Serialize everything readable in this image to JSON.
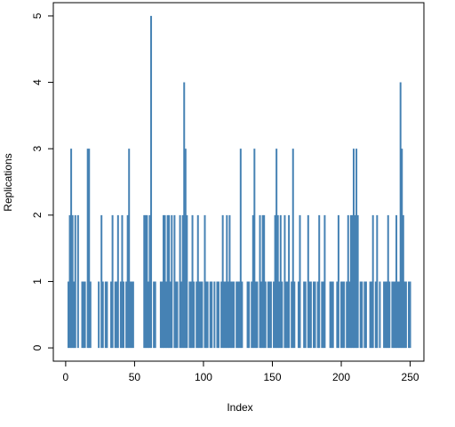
{
  "chart_data": {
    "type": "needle",
    "x_label": "Index",
    "y_label": "Replications",
    "color": "#4682b4",
    "x": [
      1,
      2,
      3,
      4,
      5,
      6,
      7,
      8,
      9,
      10,
      11,
      12,
      13,
      14,
      15,
      16,
      17,
      18,
      19,
      20,
      21,
      22,
      23,
      24,
      25,
      26,
      27,
      28,
      29,
      30,
      31,
      32,
      33,
      34,
      35,
      36,
      37,
      38,
      39,
      40,
      41,
      42,
      43,
      44,
      45,
      46,
      47,
      48,
      49,
      50,
      51,
      52,
      53,
      54,
      55,
      56,
      57,
      58,
      59,
      60,
      61,
      62,
      63,
      64,
      65,
      66,
      67,
      68,
      69,
      70,
      71,
      72,
      73,
      74,
      75,
      76,
      77,
      78,
      79,
      80,
      81,
      82,
      83,
      84,
      85,
      86,
      87,
      88,
      89,
      90,
      91,
      92,
      93,
      94,
      95,
      96,
      97,
      98,
      99,
      100,
      101,
      102,
      103,
      104,
      105,
      106,
      107,
      108,
      109,
      110,
      111,
      112,
      113,
      114,
      115,
      116,
      117,
      118,
      119,
      120,
      121,
      122,
      123,
      124,
      125,
      126,
      127,
      128,
      129,
      130,
      131,
      132,
      133,
      134,
      135,
      136,
      137,
      138,
      139,
      140,
      141,
      142,
      143,
      144,
      145,
      146,
      147,
      148,
      149,
      150,
      151,
      152,
      153,
      154,
      155,
      156,
      157,
      158,
      159,
      160,
      161,
      162,
      163,
      164,
      165,
      166,
      167,
      168,
      169,
      170,
      171,
      172,
      173,
      174,
      175,
      176,
      177,
      178,
      179,
      180,
      181,
      182,
      183,
      184,
      185,
      186,
      187,
      188,
      189,
      190,
      191,
      192,
      193,
      194,
      195,
      196,
      197,
      198,
      199,
      200,
      201,
      202,
      203,
      204,
      205,
      206,
      207,
      208,
      209,
      210,
      211,
      212,
      213,
      214,
      215,
      216,
      217,
      218,
      219,
      220,
      221,
      222,
      223,
      224,
      225,
      226,
      227,
      228,
      229,
      230,
      231,
      232,
      233,
      234,
      235,
      236,
      237,
      238,
      239,
      240,
      241,
      242,
      243,
      244,
      245,
      246,
      247,
      248,
      249,
      250
    ],
    "values": [
      0,
      1,
      2,
      3,
      2,
      1,
      2,
      0,
      2,
      0,
      0,
      1,
      1,
      1,
      0,
      3,
      3,
      1,
      0,
      0,
      0,
      0,
      0,
      1,
      0,
      2,
      1,
      0,
      1,
      1,
      0,
      0,
      1,
      2,
      0,
      1,
      1,
      2,
      0,
      1,
      2,
      1,
      0,
      1,
      2,
      3,
      1,
      1,
      1,
      0,
      0,
      0,
      0,
      0,
      0,
      0,
      2,
      2,
      2,
      1,
      2,
      5,
      0,
      1,
      1,
      0,
      0,
      0,
      1,
      1,
      2,
      2,
      1,
      2,
      2,
      1,
      2,
      0,
      2,
      1,
      1,
      0,
      2,
      1,
      2,
      4,
      3,
      2,
      0,
      1,
      1,
      2,
      1,
      0,
      1,
      2,
      1,
      1,
      1,
      0,
      2,
      1,
      1,
      0,
      1,
      1,
      0,
      1,
      0,
      1,
      1,
      0,
      1,
      2,
      1,
      1,
      2,
      1,
      2,
      1,
      1,
      1,
      0,
      1,
      1,
      1,
      3,
      1,
      0,
      0,
      0,
      1,
      1,
      0,
      1,
      2,
      3,
      1,
      1,
      0,
      2,
      1,
      2,
      2,
      1,
      0,
      1,
      1,
      1,
      0,
      1,
      2,
      3,
      2,
      1,
      2,
      1,
      0,
      2,
      1,
      1,
      2,
      0,
      1,
      3,
      1,
      0,
      0,
      1,
      2,
      0,
      0,
      1,
      1,
      0,
      2,
      1,
      1,
      0,
      1,
      1,
      0,
      1,
      2,
      0,
      1,
      1,
      2,
      0,
      0,
      0,
      1,
      1,
      1,
      0,
      0,
      1,
      2,
      0,
      1,
      1,
      1,
      0,
      1,
      2,
      1,
      2,
      2,
      3,
      2,
      3,
      2,
      0,
      1,
      1,
      0,
      1,
      1,
      0,
      0,
      1,
      1,
      2,
      0,
      1,
      2,
      0,
      1,
      0,
      0,
      1,
      1,
      1,
      2,
      1,
      0,
      1,
      1,
      1,
      2,
      1,
      1,
      4,
      3,
      2,
      1,
      1,
      0,
      1,
      1
    ],
    "xlim": [
      -8.96,
      259.96
    ],
    "xticks": [
      0,
      50,
      100,
      150,
      200,
      250
    ],
    "ylim": [
      -0.2,
      5.2
    ],
    "yticks": [
      0,
      1,
      2,
      3,
      4,
      5
    ]
  }
}
